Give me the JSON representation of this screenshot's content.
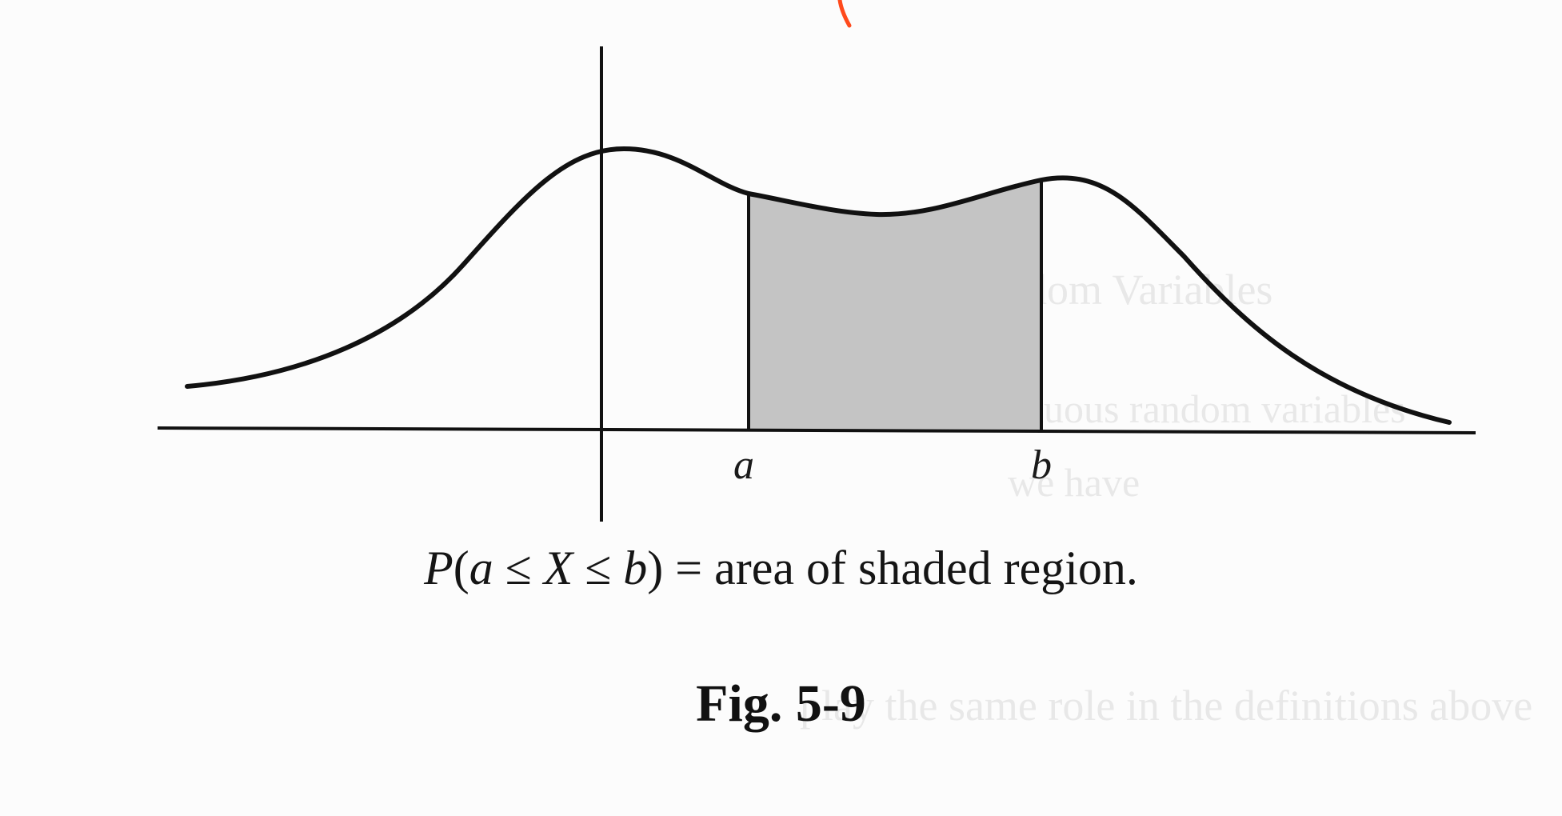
{
  "figure": {
    "label_a": "a",
    "label_b": "b",
    "caption": {
      "lhs_P": "P",
      "lhs_open": "(",
      "lhs_a": "a",
      "leq1": " ≤ ",
      "lhs_X": "X",
      "leq2": " ≤ ",
      "lhs_b": "b",
      "lhs_close": ")",
      "rhs": " = area of shaded region."
    },
    "fig_number": "Fig. 5-9"
  },
  "colors": {
    "curve": "#111111",
    "shade": "#c4c4c4",
    "pen_mark": "#ff4a1c"
  }
}
